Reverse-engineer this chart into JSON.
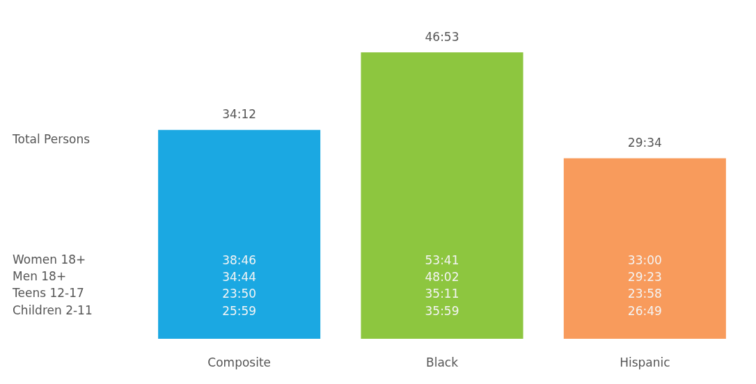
{
  "chart_data": {
    "type": "bar",
    "categories": [
      "Composite",
      "Black",
      "Hispanic"
    ],
    "values": [
      34.2,
      46.8833,
      29.5667
    ],
    "value_labels": [
      "34:12",
      "46:53",
      "29:34"
    ],
    "colors": [
      "#1ba8e2",
      "#8dc63f",
      "#f89b5c"
    ],
    "grid": false,
    "annotations": [
      "Total Persons",
      "Women 18+",
      "Men 18+",
      "Teens 12-17",
      "Children 2-11",
      "38:46",
      "34:44",
      "23:50",
      "25:59",
      "53:41",
      "48:02",
      "35:11",
      "35:59",
      "33:00",
      "29:23",
      "23:58",
      "26:49"
    ]
  }
}
